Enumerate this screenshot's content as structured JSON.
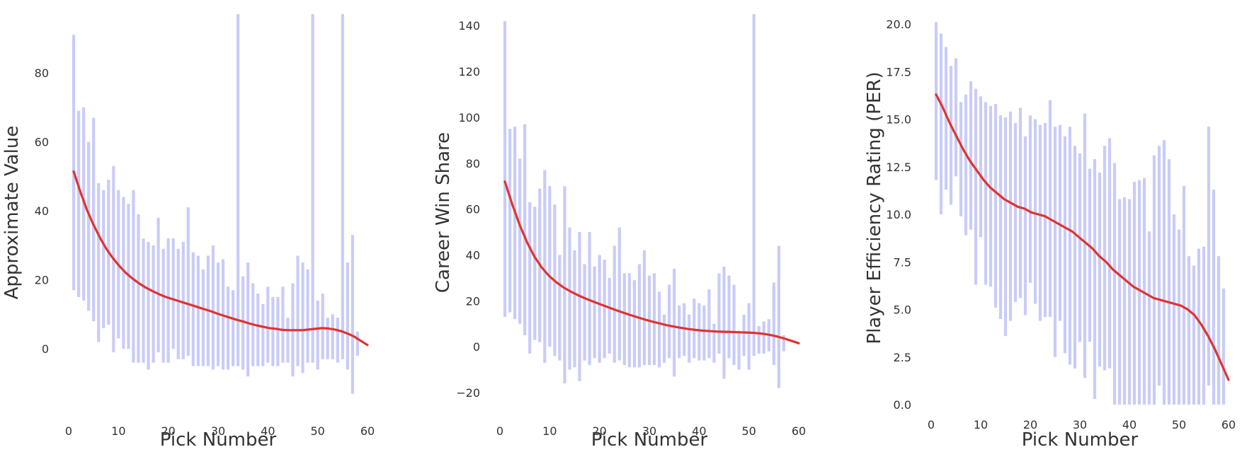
{
  "chart_data": [
    {
      "type": "bar",
      "style": "error-bars-with-smooth-trend",
      "xlabel": "Pick Number",
      "ylabel": "Approximate Value",
      "xlim": [
        0,
        60
      ],
      "ylim": [
        -18,
        97
      ],
      "xticks": [
        "0",
        "10",
        "20",
        "30",
        "40",
        "50",
        "60"
      ],
      "yticks": [
        "0",
        "20",
        "40",
        "60",
        "80"
      ],
      "grid": false,
      "colors": {
        "bars": "#c9ccf7",
        "trend": "#e0332f"
      },
      "x": [
        1,
        2,
        3,
        4,
        5,
        6,
        7,
        8,
        9,
        10,
        11,
        12,
        13,
        14,
        15,
        16,
        17,
        18,
        19,
        20,
        21,
        22,
        23,
        24,
        25,
        26,
        27,
        28,
        29,
        30,
        31,
        32,
        33,
        34,
        35,
        36,
        37,
        38,
        39,
        40,
        41,
        42,
        43,
        44,
        45,
        46,
        47,
        48,
        49,
        50,
        51,
        52,
        53,
        54,
        55,
        56,
        57,
        58,
        59,
        60
      ],
      "lower": [
        17,
        15,
        14,
        11,
        8,
        2,
        6,
        7,
        -1,
        3,
        0,
        0,
        -4,
        -4,
        -4,
        -6,
        -4,
        -1,
        -4,
        -4,
        0,
        -3,
        -3,
        -2,
        -5,
        -5,
        -5,
        -5,
        -6,
        -5,
        -6,
        -6,
        -5,
        -5,
        -6,
        -8,
        -5,
        -5,
        -5,
        -4,
        -5,
        -5,
        -4,
        -4,
        -8,
        -5,
        -7,
        -4,
        -4,
        -6,
        -3,
        -3,
        -3,
        -4,
        -3,
        -6,
        -13,
        -2,
        null,
        null
      ],
      "upper": [
        91,
        69,
        70,
        60,
        67,
        48,
        46,
        49,
        53,
        46,
        44,
        42,
        46,
        39,
        32,
        31,
        30,
        38,
        29,
        32,
        32,
        29,
        31,
        41,
        28,
        27,
        23,
        27,
        30,
        25,
        26,
        18,
        17,
        null,
        21,
        25,
        19,
        16,
        13,
        18,
        15,
        15,
        18,
        9,
        19,
        27,
        25,
        23,
        null,
        14,
        16,
        9,
        10,
        9,
        null,
        25,
        33,
        5,
        null,
        null
      ],
      "trend_y": [
        51.4,
        45.6,
        40.4,
        36.1,
        32.3,
        29.0,
        26.3,
        24.0,
        22.0,
        20.4,
        19.0,
        17.8,
        16.8,
        15.9,
        15.1,
        14.5,
        13.9,
        13.3,
        12.7,
        12.1,
        11.5,
        10.9,
        10.2,
        9.6,
        9.0,
        8.4,
        7.9,
        7.3,
        6.8,
        6.4,
        6.0,
        5.8,
        5.5,
        5.4,
        5.4,
        5.4,
        5.6,
        5.8,
        6.0,
        5.9,
        5.6,
        5.1,
        4.4,
        3.5,
        2.3,
        1.1
      ]
    },
    {
      "type": "bar",
      "style": "error-bars-with-smooth-trend",
      "xlabel": "Pick Number",
      "ylabel": "Career Win Share",
      "xlim": [
        0,
        60
      ],
      "ylim": [
        -28,
        145
      ],
      "xticks": [
        "0",
        "10",
        "20",
        "30",
        "40",
        "50",
        "60"
      ],
      "yticks": [
        "−20",
        "0",
        "20",
        "40",
        "60",
        "80",
        "100",
        "120",
        "140"
      ],
      "grid": false,
      "colors": {
        "bars": "#c9ccf7",
        "trend": "#e0332f"
      },
      "x": [
        1,
        2,
        3,
        4,
        5,
        6,
        7,
        8,
        9,
        10,
        11,
        12,
        13,
        14,
        15,
        16,
        17,
        18,
        19,
        20,
        21,
        22,
        23,
        24,
        25,
        26,
        27,
        28,
        29,
        30,
        31,
        32,
        33,
        34,
        35,
        36,
        37,
        38,
        39,
        40,
        41,
        42,
        43,
        44,
        45,
        46,
        47,
        48,
        49,
        50,
        51,
        52,
        53,
        54,
        55,
        56,
        57,
        58,
        59,
        60
      ],
      "lower": [
        13,
        15,
        12,
        10,
        5,
        -3,
        3,
        2,
        -7,
        0,
        -4,
        -6,
        -16,
        -10,
        -9,
        -15,
        -6,
        -8,
        -5,
        -7,
        -5,
        -3,
        -7,
        -6,
        -8,
        -9,
        -9,
        -9,
        -8,
        -8,
        -8,
        -9,
        -7,
        -5,
        -13,
        -5,
        -4,
        -7,
        -5,
        -6,
        -6,
        -5,
        -7,
        -3,
        -14,
        -5,
        -8,
        -10,
        -4,
        -10,
        -4,
        -3,
        -3,
        -2,
        -8,
        -18,
        -2,
        null,
        null,
        null
      ],
      "upper": [
        142,
        95,
        96,
        82,
        97,
        63,
        61,
        69,
        77,
        70,
        62,
        40,
        70,
        52,
        42,
        50,
        36,
        50,
        35,
        40,
        38,
        30,
        44,
        52,
        32,
        32,
        29,
        36,
        42,
        31,
        32,
        24,
        14,
        27,
        34,
        18,
        19,
        14,
        21,
        19,
        18,
        25,
        10,
        32,
        35,
        31,
        27,
        7,
        14,
        19,
        null,
        9,
        11,
        12,
        28,
        44,
        5,
        null,
        null,
        null
      ],
      "trend_y": [
        72.0,
        62.1,
        53.2,
        45.6,
        39.4,
        34.6,
        30.9,
        28.1,
        25.8,
        24.0,
        22.4,
        21.0,
        19.7,
        18.5,
        17.3,
        16.1,
        15.0,
        13.9,
        12.9,
        11.9,
        11.0,
        10.2,
        9.4,
        8.8,
        8.2,
        7.7,
        7.3,
        7.0,
        6.8,
        6.6,
        6.5,
        6.4,
        6.3,
        6.2,
        6.0,
        5.7,
        5.2,
        4.5,
        3.6,
        2.6,
        1.5
      ]
    },
    {
      "type": "bar",
      "style": "error-bars-with-smooth-trend",
      "xlabel": "Pick Number",
      "ylabel": "Player Efficiency Rating (PER)",
      "xlim": [
        0,
        60
      ],
      "ylim": [
        0,
        20.3
      ],
      "xticks": [
        "0",
        "10",
        "20",
        "30",
        "40",
        "50",
        "60"
      ],
      "yticks": [
        "0.0",
        "2.5",
        "5.0",
        "7.5",
        "10.0",
        "12.5",
        "15.0",
        "17.5",
        "20.0"
      ],
      "grid": false,
      "colors": {
        "bars": "#c9ccf7",
        "trend": "#e0332f"
      },
      "x": [
        1,
        2,
        3,
        4,
        5,
        6,
        7,
        8,
        9,
        10,
        11,
        12,
        13,
        14,
        15,
        16,
        17,
        18,
        19,
        20,
        21,
        22,
        23,
        24,
        25,
        26,
        27,
        28,
        29,
        30,
        31,
        32,
        33,
        34,
        35,
        36,
        37,
        38,
        39,
        40,
        41,
        42,
        43,
        44,
        45,
        46,
        47,
        48,
        49,
        50,
        51,
        52,
        53,
        54,
        55,
        56,
        57,
        58,
        59
      ],
      "lower": [
        11.8,
        10.0,
        11.3,
        10.5,
        12.0,
        9.9,
        8.9,
        9.2,
        6.3,
        8.8,
        6.3,
        6.2,
        5.1,
        4.5,
        3.6,
        4.4,
        5.4,
        5.6,
        4.7,
        6.4,
        5.3,
        4.4,
        4.6,
        4.6,
        2.5,
        4.4,
        2.7,
        2.1,
        1.9,
        3.3,
        1.4,
        3.3,
        0.3,
        2.0,
        1.8,
        1.9,
        0.0,
        0.0,
        0.0,
        0.0,
        0.0,
        0.0,
        0.0,
        0.0,
        0.0,
        1.0,
        0.0,
        0.0,
        0.0,
        0.0,
        0.0,
        0.0,
        0.0,
        0.0,
        0.0,
        1.0,
        0.0,
        0.0,
        null
      ],
      "upper": [
        20.1,
        19.5,
        18.8,
        17.8,
        18.2,
        15.9,
        16.3,
        17.0,
        16.6,
        16.2,
        15.9,
        15.7,
        15.8,
        15.2,
        15.1,
        15.4,
        14.8,
        15.6,
        14.1,
        15.2,
        15.0,
        14.7,
        14.8,
        16.0,
        14.6,
        14.7,
        14.1,
        14.6,
        13.6,
        13.2,
        15.3,
        12.4,
        12.9,
        12.2,
        13.6,
        14.0,
        12.7,
        10.8,
        10.9,
        10.8,
        11.7,
        11.8,
        11.9,
        9.1,
        13.1,
        13.6,
        13.9,
        12.9,
        10.0,
        9.2,
        11.5,
        7.8,
        7.3,
        8.2,
        8.3,
        14.6,
        11.3,
        7.8,
        6.1
      ],
      "trend_y": [
        16.3,
        15.6,
        14.8,
        14.1,
        13.4,
        12.8,
        12.3,
        11.8,
        11.4,
        11.1,
        10.8,
        10.6,
        10.4,
        10.3,
        10.1,
        10.0,
        9.9,
        9.7,
        9.5,
        9.3,
        9.1,
        8.8,
        8.5,
        8.2,
        7.8,
        7.5,
        7.1,
        6.8,
        6.5,
        6.2,
        6.0,
        5.8,
        5.6,
        5.5,
        5.4,
        5.3,
        5.2,
        5.0,
        4.7,
        4.2,
        3.6,
        2.9,
        2.1,
        1.3
      ]
    }
  ]
}
